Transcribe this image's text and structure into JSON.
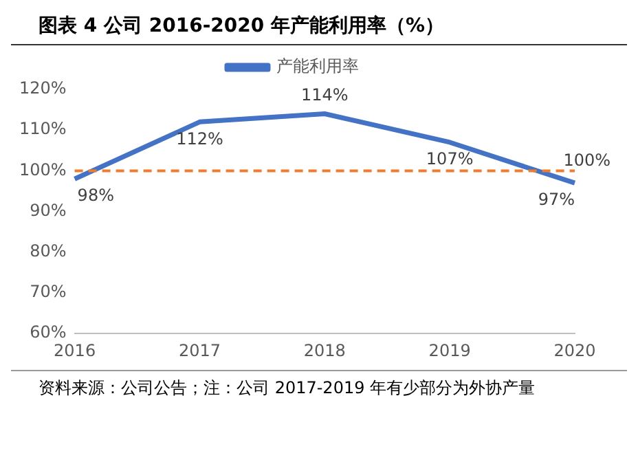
{
  "chart_data": {
    "type": "line",
    "title": "图表 4 公司 2016-2020 年产能利用率（%）",
    "categories": [
      "2016",
      "2017",
      "2018",
      "2019",
      "2020"
    ],
    "series": [
      {
        "name": "产能利用率",
        "color": "#4472c4",
        "values": [
          98,
          112,
          114,
          107,
          97
        ],
        "value_labels": [
          "98%",
          "112%",
          "114%",
          "107%",
          "97%"
        ]
      }
    ],
    "ylim": [
      60,
      120
    ],
    "yticks": [
      {
        "value": 60,
        "label": "60%"
      },
      {
        "value": 70,
        "label": "70%"
      },
      {
        "value": 80,
        "label": "80%"
      },
      {
        "value": 90,
        "label": "90%"
      },
      {
        "value": 100,
        "label": "100%"
      },
      {
        "value": 110,
        "label": "110%"
      },
      {
        "value": 120,
        "label": "120%"
      }
    ],
    "ref_lines": [
      {
        "axis": "y",
        "value": 100,
        "label": "100%",
        "color": "#ed7d31",
        "line_style": "dashed"
      }
    ],
    "legend": "top",
    "grid": false,
    "marker": "none",
    "line_style": "solid",
    "annotations": [
      "资料来源：公司公告；注：公司 2017-2019 年有少部分为外协产量"
    ]
  }
}
